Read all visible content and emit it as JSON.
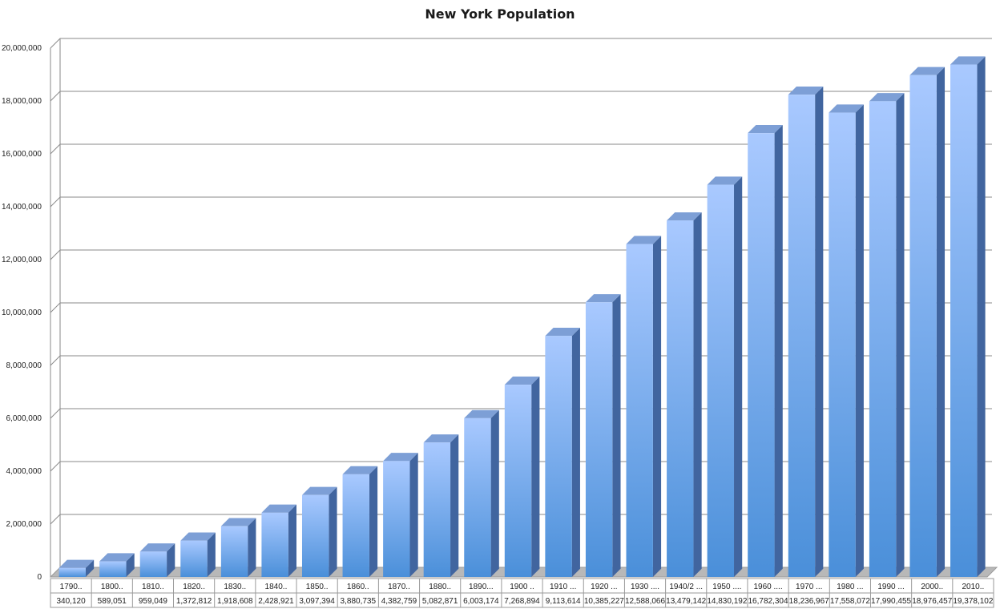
{
  "chart_data": {
    "type": "bar",
    "title": "New York Population",
    "xlabel": "",
    "ylabel": "",
    "ylim": [
      0,
      20000000
    ],
    "y_ticks": [
      "0",
      "2,000,000",
      "4,000,000",
      "6,000,000",
      "8,000,000",
      "10,000,000",
      "12,000,000",
      "14,000,000",
      "16,000,000",
      "18,000,000",
      "20,000,000"
    ],
    "grid": true,
    "three_d": true,
    "bar_color_top": "#a9c9ff",
    "bar_color_bottom": "#4a8fd9",
    "bar_side_color": "#41659f",
    "bar_cap_color": "#7d9fd6",
    "categories": [
      "1790..",
      "1800..",
      "1810..",
      "1820..",
      "1830..",
      "1840..",
      "1850..",
      "1860..",
      "1870..",
      "1880..",
      "1890...",
      "1900 ..",
      "1910 ...",
      "1920 ...",
      "1930 ....",
      "1940/2 ...",
      "1950 ....",
      "1960 ....",
      "1970 ...",
      "1980 ...",
      "1990 ...",
      "2000..",
      "2010.."
    ],
    "value_labels": [
      "340,120",
      "589,051",
      "959,049",
      "1,372,812",
      "1,918,608",
      "2,428,921",
      "3,097,394",
      "3,880,735",
      "4,382,759",
      "5,082,871",
      "6,003,174",
      "7,268,894",
      "9,113,614",
      "10,385,227",
      "12,588,066",
      "13,479,142",
      "14,830,192",
      "16,782,304",
      "18,236,967",
      "17,558,072",
      "17,990,455",
      "18,976,457",
      "19,378,102"
    ],
    "values": [
      340120,
      589051,
      959049,
      1372812,
      1918608,
      2428921,
      3097394,
      3880735,
      4382759,
      5082871,
      6003174,
      7268894,
      9113614,
      10385227,
      12588066,
      13479142,
      14830192,
      16782304,
      18236967,
      17558072,
      17990455,
      18976457,
      19378102
    ]
  }
}
